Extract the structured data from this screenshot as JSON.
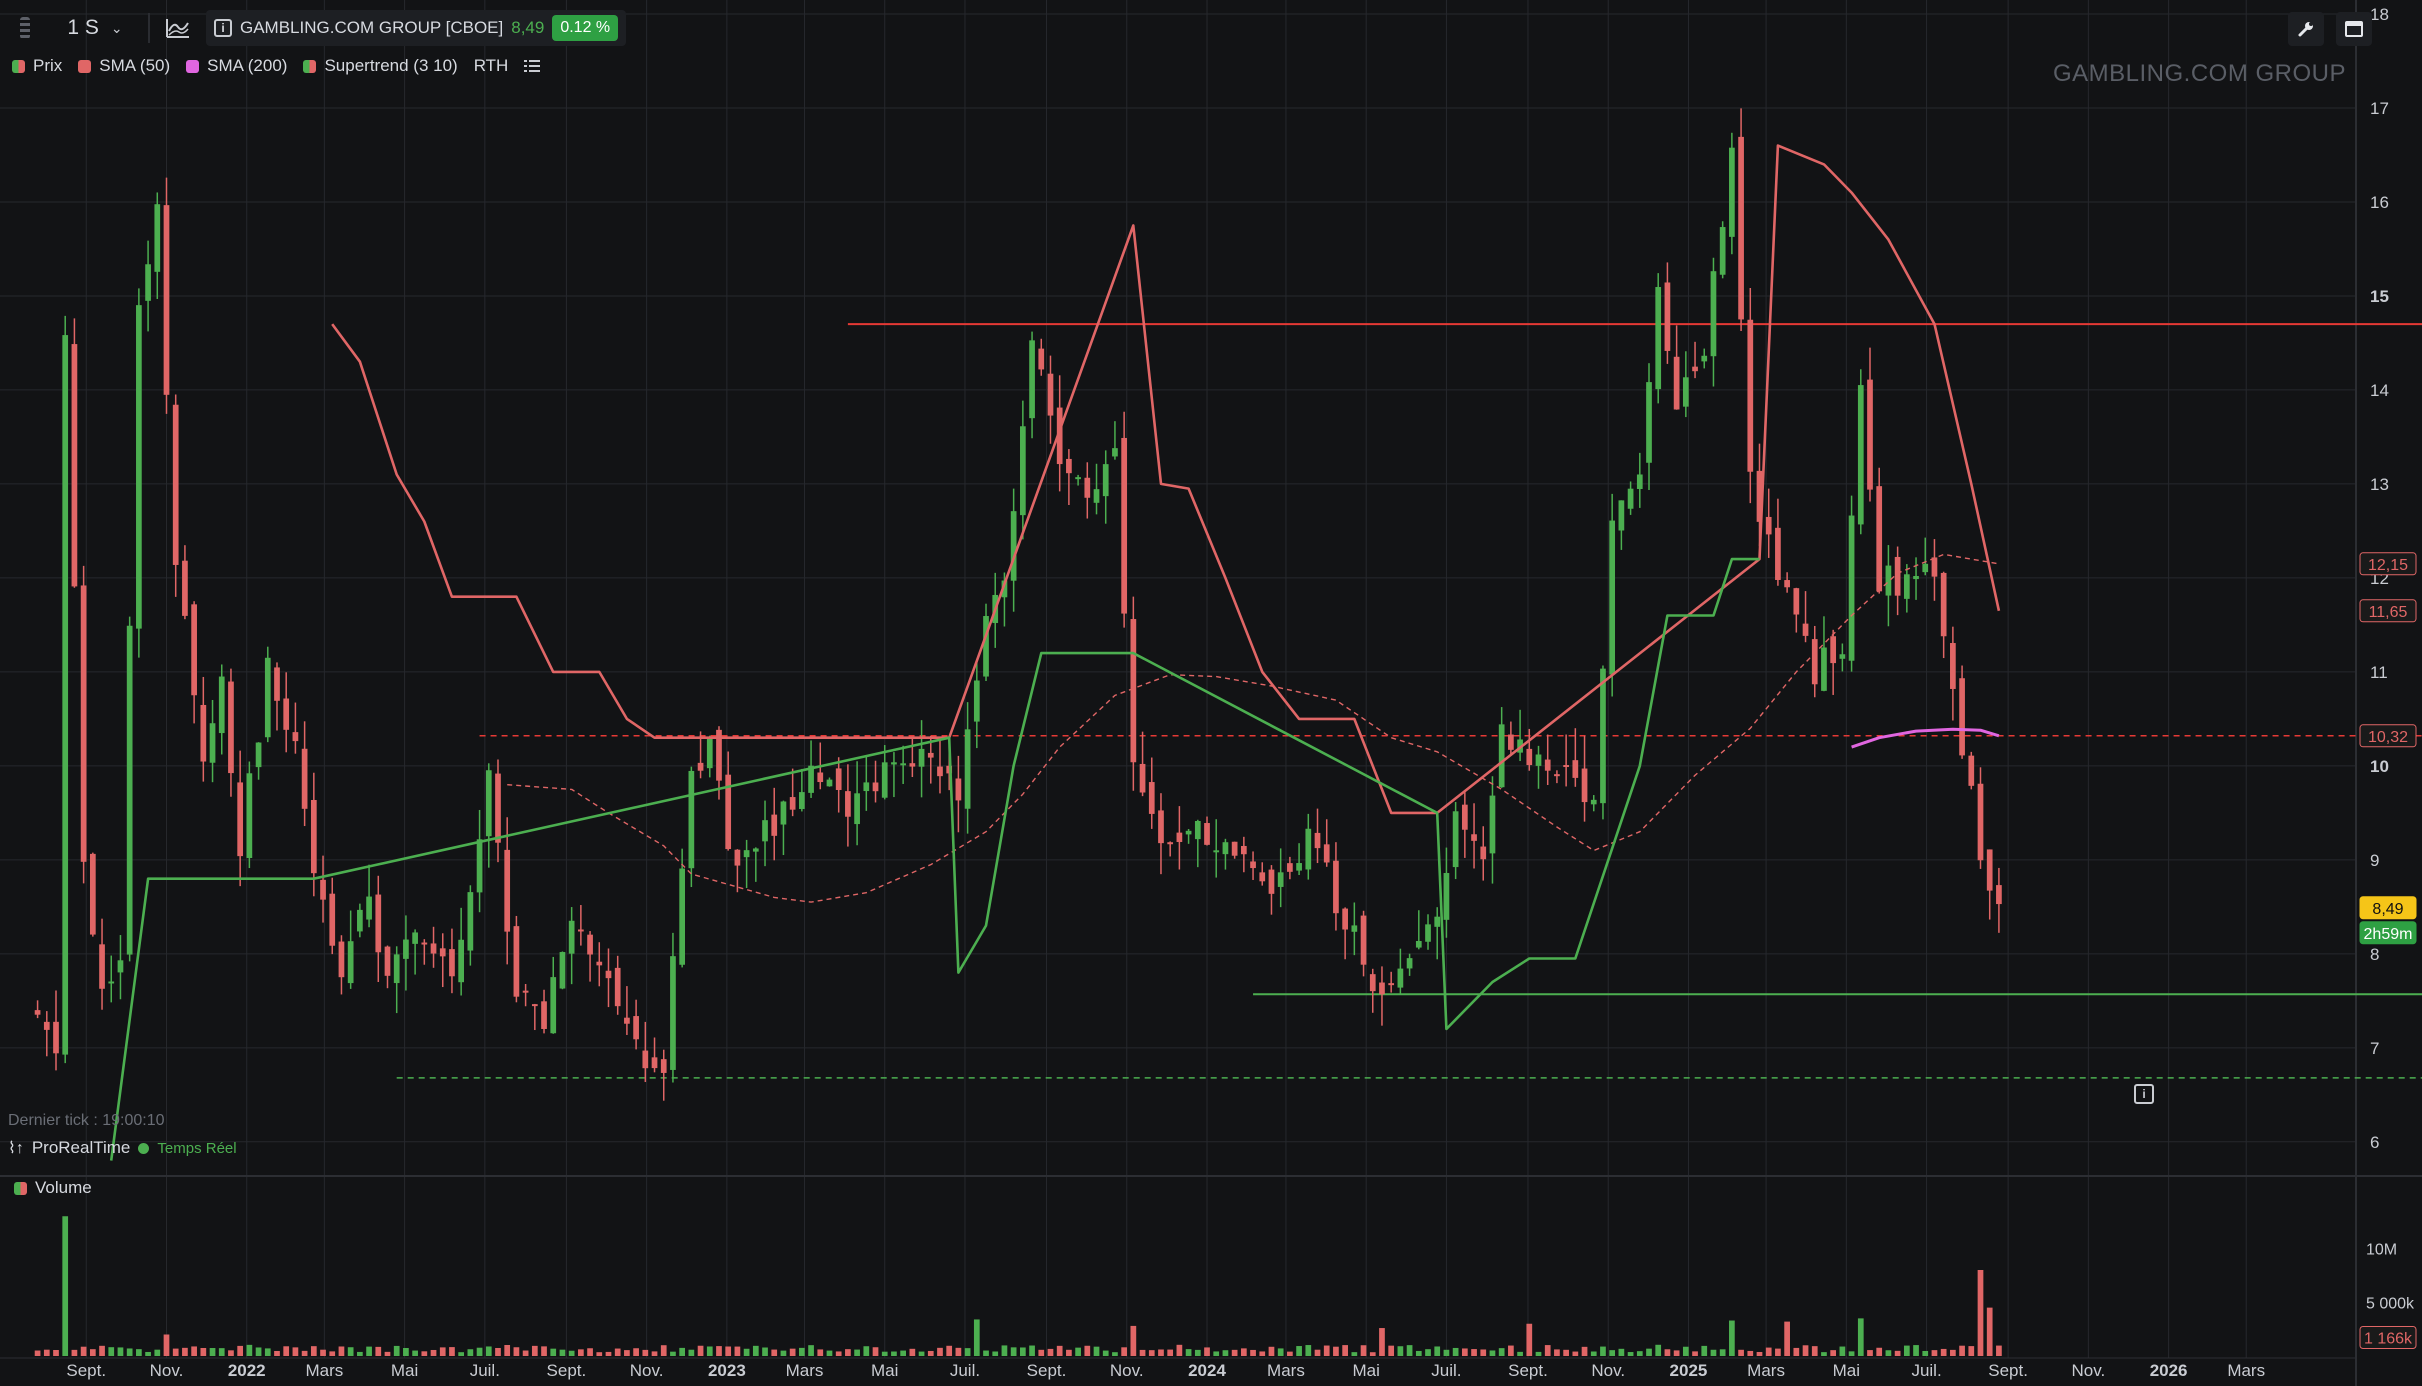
{
  "toolbar": {
    "timeframe": "1 S",
    "symbol": "GAMBLING.COM GROUP [CBOE]",
    "last_price": "8,49",
    "change_pct": "0.12 %"
  },
  "legend": {
    "items": [
      {
        "label": "Prix",
        "color": "#4caf50"
      },
      {
        "label": "SMA (50)",
        "color": "#e06666"
      },
      {
        "label": "SMA (200)",
        "color": "#e066e0"
      },
      {
        "label": "Supertrend (3 10)",
        "color": "#4caf50"
      }
    ],
    "rth": "RTH"
  },
  "watermark": "GAMBLING.COM GROUP",
  "footer": {
    "last_tick": "Dernier tick : 19:00:10",
    "brand": "ProRealTime",
    "live": "Temps Réel"
  },
  "volume_legend": "Volume",
  "price_tags": [
    {
      "value": 12.15,
      "label": "12,15",
      "bg": "#1a1a1a",
      "fg": "#e06666",
      "border": "#e06666"
    },
    {
      "value": 11.65,
      "label": "11,65",
      "bg": "#1a1a1a",
      "fg": "#e06666",
      "border": "#e06666"
    },
    {
      "value": 10.32,
      "label": "10,32",
      "bg": "#1a1a1a",
      "fg": "#e06666",
      "border": "#e06666"
    },
    {
      "value": 8.49,
      "label": "8,49",
      "bg": "#f5c518",
      "fg": "#111111",
      "border": "#f5c518"
    }
  ],
  "countdown": "2h59m",
  "volume_tags": [
    "10M",
    "5 000k",
    "1 166k"
  ],
  "colors": {
    "up": "#4caf50",
    "down": "#e06666",
    "sma200": "#e066e0",
    "resistance": "#e53935",
    "background": "#121315",
    "grid": "#26282d"
  },
  "chart_data": {
    "type": "candlestick",
    "interval": "weekly",
    "price_axis": {
      "ylim": [
        5.7,
        18.0
      ],
      "ticks": [
        6,
        7,
        8,
        9,
        10,
        11,
        12,
        13,
        14,
        15,
        16,
        17,
        18
      ],
      "bold_ticks": [
        10,
        15
      ]
    },
    "time_axis_labels": [
      {
        "date": "2021-09",
        "label": "Sept."
      },
      {
        "date": "2021-11",
        "label": "Nov."
      },
      {
        "date": "2022-01",
        "label": "2022",
        "bold": true
      },
      {
        "date": "2022-03",
        "label": "Mars"
      },
      {
        "date": "2022-05",
        "label": "Mai"
      },
      {
        "date": "2022-07",
        "label": "Juil."
      },
      {
        "date": "2022-09",
        "label": "Sept."
      },
      {
        "date": "2022-11",
        "label": "Nov."
      },
      {
        "date": "2023-01",
        "label": "2023",
        "bold": true
      },
      {
        "date": "2023-03",
        "label": "Mars"
      },
      {
        "date": "2023-05",
        "label": "Mai"
      },
      {
        "date": "2023-07",
        "label": "Juil."
      },
      {
        "date": "2023-09",
        "label": "Sept."
      },
      {
        "date": "2023-11",
        "label": "Nov."
      },
      {
        "date": "2024-01",
        "label": "2024",
        "bold": true
      },
      {
        "date": "2024-03",
        "label": "Mars"
      },
      {
        "date": "2024-05",
        "label": "Mai"
      },
      {
        "date": "2024-07",
        "label": "Juil."
      },
      {
        "date": "2024-09",
        "label": "Sept."
      },
      {
        "date": "2024-11",
        "label": "Nov."
      },
      {
        "date": "2025-01",
        "label": "2025",
        "bold": true
      },
      {
        "date": "2025-03",
        "label": "Mars"
      },
      {
        "date": "2025-05",
        "label": "Mai"
      },
      {
        "date": "2025-07",
        "label": "Juil."
      },
      {
        "date": "2025-09",
        "label": "Sept."
      },
      {
        "date": "2025-11",
        "label": "Nov."
      },
      {
        "date": "2026-01",
        "label": "2026",
        "bold": true
      },
      {
        "date": "2026-03",
        "label": "Mars"
      }
    ],
    "close_path": [
      [
        "2021-07-26",
        7.3
      ],
      [
        "2021-08-09",
        6.9
      ],
      [
        "2021-08-16",
        14.6
      ],
      [
        "2021-08-30",
        9.0
      ],
      [
        "2021-09-13",
        7.5
      ],
      [
        "2021-09-27",
        8.0
      ],
      [
        "2021-10-11",
        15.0
      ],
      [
        "2021-10-25",
        15.9
      ],
      [
        "2021-11-08",
        12.3
      ],
      [
        "2021-11-29",
        10.0
      ],
      [
        "2021-12-13",
        10.8
      ],
      [
        "2021-12-27",
        9.2
      ],
      [
        "2022-01-17",
        11.0
      ],
      [
        "2022-02-07",
        10.3
      ],
      [
        "2022-02-21",
        8.9
      ],
      [
        "2022-03-14",
        7.9
      ],
      [
        "2022-04-04",
        8.7
      ],
      [
        "2022-04-18",
        7.6
      ],
      [
        "2022-05-09",
        8.3
      ],
      [
        "2022-06-06",
        7.8
      ],
      [
        "2022-07-04",
        9.8
      ],
      [
        "2022-07-25",
        7.7
      ],
      [
        "2022-08-15",
        7.2
      ],
      [
        "2022-09-05",
        8.4
      ],
      [
        "2022-10-03",
        7.6
      ],
      [
        "2022-10-24",
        7.0
      ],
      [
        "2022-11-14",
        6.8
      ],
      [
        "2022-12-05",
        9.9
      ],
      [
        "2022-12-19",
        10.2
      ],
      [
        "2023-01-09",
        8.8
      ],
      [
        "2023-02-06",
        9.4
      ],
      [
        "2023-03-06",
        9.9
      ],
      [
        "2023-04-03",
        9.6
      ],
      [
        "2023-05-01",
        10.0
      ],
      [
        "2023-06-05",
        10.2
      ],
      [
        "2023-06-26",
        9.6
      ],
      [
        "2023-07-17",
        11.6
      ],
      [
        "2023-07-31",
        12.0
      ],
      [
        "2023-08-21",
        14.6
      ],
      [
        "2023-09-11",
        13.3
      ],
      [
        "2023-10-02",
        12.9
      ],
      [
        "2023-10-23",
        13.3
      ],
      [
        "2023-11-06",
        10.0
      ],
      [
        "2023-11-27",
        9.3
      ],
      [
        "2023-12-25",
        9.4
      ],
      [
        "2024-01-22",
        9.0
      ],
      [
        "2024-02-19",
        8.6
      ],
      [
        "2024-03-18",
        9.2
      ],
      [
        "2024-04-15",
        8.4
      ],
      [
        "2024-05-06",
        7.7
      ],
      [
        "2024-05-27",
        7.8
      ],
      [
        "2024-06-24",
        8.3
      ],
      [
        "2024-07-08",
        9.4
      ],
      [
        "2024-07-29",
        9.0
      ],
      [
        "2024-08-12",
        10.5
      ],
      [
        "2024-09-02",
        10.0
      ],
      [
        "2024-09-30",
        10.1
      ],
      [
        "2024-10-21",
        9.5
      ],
      [
        "2024-11-04",
        12.5
      ],
      [
        "2024-11-25",
        13.0
      ],
      [
        "2024-12-09",
        15.2
      ],
      [
        "2024-12-23",
        13.8
      ],
      [
        "2025-01-13",
        14.5
      ],
      [
        "2025-02-03",
        16.6
      ],
      [
        "2025-02-17",
        13.0
      ],
      [
        "2025-03-10",
        12.0
      ],
      [
        "2025-04-07",
        11.0
      ],
      [
        "2025-04-28",
        11.3
      ],
      [
        "2025-05-12",
        14.0
      ],
      [
        "2025-05-26",
        12.0
      ],
      [
        "2025-06-16",
        11.9
      ],
      [
        "2025-07-07",
        12.1
      ],
      [
        "2025-07-28",
        10.2
      ],
      [
        "2025-08-18",
        8.6
      ],
      [
        "2025-08-25",
        8.49
      ]
    ],
    "sma50_path": [
      [
        "2022-07-18",
        9.8
      ],
      [
        "2022-09-05",
        9.75
      ],
      [
        "2022-10-03",
        9.5
      ],
      [
        "2022-11-14",
        9.15
      ],
      [
        "2022-12-05",
        8.85
      ],
      [
        "2023-02-06",
        8.6
      ],
      [
        "2023-03-06",
        8.55
      ],
      [
        "2023-04-17",
        8.65
      ],
      [
        "2023-06-05",
        8.95
      ],
      [
        "2023-07-17",
        9.3
      ],
      [
        "2023-08-14",
        9.7
      ],
      [
        "2023-09-11",
        10.2
      ],
      [
        "2023-10-23",
        10.75
      ],
      [
        "2023-12-04",
        10.97
      ],
      [
        "2024-01-08",
        10.95
      ],
      [
        "2024-02-19",
        10.85
      ],
      [
        "2024-04-08",
        10.7
      ],
      [
        "2024-05-20",
        10.3
      ],
      [
        "2024-06-24",
        10.15
      ],
      [
        "2024-08-12",
        9.75
      ],
      [
        "2024-09-23",
        9.35
      ],
      [
        "2024-10-21",
        9.1
      ],
      [
        "2024-11-25",
        9.3
      ],
      [
        "2025-01-06",
        9.9
      ],
      [
        "2025-02-17",
        10.4
      ],
      [
        "2025-03-24",
        11.0
      ],
      [
        "2025-05-05",
        11.6
      ],
      [
        "2025-06-09",
        12.05
      ],
      [
        "2025-07-14",
        12.25
      ],
      [
        "2025-08-25",
        12.15
      ]
    ],
    "sma200_path": [
      [
        "2025-05-05",
        10.2
      ],
      [
        "2025-05-26",
        10.3
      ],
      [
        "2025-06-23",
        10.37
      ],
      [
        "2025-07-21",
        10.39
      ],
      [
        "2025-08-11",
        10.38
      ],
      [
        "2025-08-25",
        10.32
      ]
    ],
    "supertrend_down": [
      [
        "2022-03-07",
        14.7
      ],
      [
        "2022-03-28",
        14.3
      ],
      [
        "2022-04-25",
        13.1
      ],
      [
        "2022-05-16",
        12.6
      ],
      [
        "2022-06-06",
        11.8
      ],
      [
        "2022-07-25",
        11.8
      ],
      [
        "2022-08-22",
        11.0
      ],
      [
        "2022-09-26",
        11.0
      ],
      [
        "2022-10-17",
        10.5
      ],
      [
        "2022-11-07",
        10.3
      ],
      [
        "2023-06-19",
        10.3
      ],
      [
        "2023-11-06",
        15.75
      ],
      [
        "2023-11-27",
        13.0
      ],
      [
        "2023-12-18",
        12.95
      ],
      [
        "2024-01-15",
        12.0
      ],
      [
        "2024-02-12",
        11.0
      ],
      [
        "2024-03-11",
        10.5
      ],
      [
        "2024-04-22",
        10.5
      ],
      [
        "2024-05-20",
        9.5
      ],
      [
        "2024-06-24",
        9.5
      ],
      [
        "2025-02-24",
        12.2
      ],
      [
        "2025-03-10",
        16.6
      ],
      [
        "2025-04-14",
        16.4
      ],
      [
        "2025-05-05",
        16.1
      ],
      [
        "2025-06-02",
        15.6
      ],
      [
        "2025-07-07",
        14.7
      ],
      [
        "2025-08-04",
        13.0
      ],
      [
        "2025-08-25",
        11.65
      ]
    ],
    "supertrend_up": [
      [
        "2021-09-20",
        5.8
      ],
      [
        "2021-10-18",
        8.8
      ],
      [
        "2022-02-21",
        8.8
      ],
      [
        "2023-06-19",
        10.3
      ],
      [
        "2023-06-26",
        7.8
      ],
      [
        "2023-07-17",
        8.3
      ],
      [
        "2023-08-07",
        10.0
      ],
      [
        "2023-08-28",
        11.2
      ],
      [
        "2023-10-23",
        11.2
      ],
      [
        "2023-11-06",
        11.2
      ],
      [
        "2024-06-24",
        9.5
      ],
      [
        "2024-07-01",
        7.2
      ],
      [
        "2024-08-05",
        7.7
      ],
      [
        "2024-09-02",
        7.95
      ],
      [
        "2024-10-07",
        7.95
      ],
      [
        "2024-11-25",
        10.0
      ],
      [
        "2024-12-16",
        11.6
      ],
      [
        "2025-01-20",
        11.6
      ],
      [
        "2025-02-03",
        12.2
      ],
      [
        "2025-02-24",
        12.2
      ]
    ],
    "horizontal_lines": [
      {
        "name": "resistance",
        "value": 14.7,
        "from": "2023-04-03",
        "style": "solid",
        "color": "#e53935"
      },
      {
        "name": "level-10-32",
        "value": 10.32,
        "from": "2022-06-27",
        "style": "dashed",
        "color": "#e53935"
      },
      {
        "name": "support",
        "value": 7.57,
        "from": "2024-02-05",
        "style": "solid",
        "color": "#4caf50"
      },
      {
        "name": "low-line",
        "value": 6.68,
        "from": "2022-04-25",
        "style": "dashed",
        "color": "#4caf50"
      }
    ],
    "volume": {
      "ylim": [
        0,
        16000000
      ],
      "ticks": [
        {
          "value": 10000000,
          "label": "10M"
        },
        {
          "value": 5000000,
          "label": "5 000k"
        }
      ],
      "last": 1166000,
      "spikes": [
        [
          "2021-08-16",
          13000000
        ],
        [
          "2021-11-01",
          2000000
        ],
        [
          "2023-07-10",
          3400000
        ],
        [
          "2023-11-06",
          2800000
        ],
        [
          "2024-05-13",
          2600000
        ],
        [
          "2024-09-02",
          3000000
        ],
        [
          "2025-02-03",
          3300000
        ],
        [
          "2025-03-17",
          3200000
        ],
        [
          "2025-05-12",
          3500000
        ],
        [
          "2025-08-11",
          8000000
        ],
        [
          "2025-08-18",
          4500000
        ]
      ]
    }
  }
}
